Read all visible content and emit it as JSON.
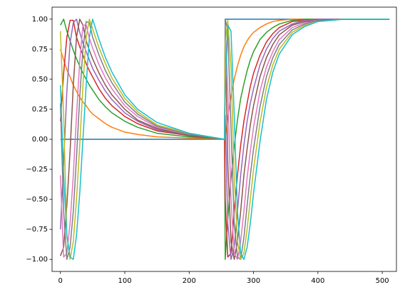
{
  "chart_data": {
    "type": "line",
    "x": [
      0,
      5,
      10,
      15,
      20,
      25,
      30,
      35,
      40,
      45,
      50,
      60,
      70,
      80,
      100,
      120,
      150,
      200,
      255,
      256,
      260,
      265,
      270,
      275,
      280,
      285,
      290,
      295,
      300,
      310,
      320,
      330,
      340,
      360,
      380,
      400,
      440,
      511
    ],
    "series": [
      {
        "color": "#1f77b4",
        "values": [
          0,
          0,
          0,
          0,
          0,
          0,
          0,
          0,
          0,
          0,
          0,
          0,
          0,
          0,
          0,
          0,
          0,
          0,
          0,
          1,
          1,
          1,
          1,
          1,
          1,
          1,
          1,
          1,
          1,
          1,
          1,
          1,
          1,
          1,
          1,
          1,
          1,
          1
        ]
      },
      {
        "color": "#ff7f0e",
        "values": [
          0.75,
          0.66,
          0.58,
          0.52,
          0.45,
          0.4,
          0.35,
          0.31,
          0.28,
          0.24,
          0.21,
          0.17,
          0.13,
          0.1,
          0.06,
          0.04,
          0.02,
          0.01,
          0,
          0,
          0.18,
          0.36,
          0.5,
          0.61,
          0.7,
          0.77,
          0.82,
          0.86,
          0.89,
          0.93,
          0.96,
          0.98,
          0.99,
          1,
          1,
          1,
          1,
          1
        ]
      },
      {
        "color": "#2ca02c",
        "values": [
          0.95,
          1,
          0.9,
          0.82,
          0.74,
          0.67,
          0.61,
          0.55,
          0.5,
          0.45,
          0.41,
          0.33,
          0.27,
          0.22,
          0.15,
          0.1,
          0.05,
          0.02,
          0,
          -1,
          -0.66,
          -0.33,
          -0.06,
          0.16,
          0.34,
          0.46,
          0.57,
          0.66,
          0.73,
          0.83,
          0.89,
          0.93,
          0.96,
          0.99,
          1,
          1,
          1,
          1
        ]
      },
      {
        "color": "#d62728",
        "values": [
          0.15,
          0.55,
          0.85,
          0.99,
          0.99,
          0.85,
          0.77,
          0.7,
          0.63,
          0.57,
          0.52,
          0.42,
          0.34,
          0.28,
          0.19,
          0.13,
          0.07,
          0.03,
          0,
          -0.5,
          -0.98,
          -0.95,
          -0.6,
          -0.3,
          -0.05,
          0.15,
          0.3,
          0.44,
          0.55,
          0.7,
          0.81,
          0.88,
          0.93,
          0.98,
          0.99,
          1,
          1,
          1
        ]
      },
      {
        "color": "#9467bd",
        "values": [
          -0.75,
          -0.2,
          0.4,
          0.8,
          0.97,
          1,
          0.89,
          0.8,
          0.73,
          0.66,
          0.59,
          0.49,
          0.4,
          0.33,
          0.22,
          0.15,
          0.08,
          0.03,
          0,
          0.2,
          -0.7,
          -1,
          -0.9,
          -0.6,
          -0.3,
          -0.05,
          0.15,
          0.3,
          0.42,
          0.62,
          0.75,
          0.84,
          0.9,
          0.96,
          0.99,
          1,
          1,
          1
        ]
      },
      {
        "color": "#8c564b",
        "values": [
          -0.97,
          -0.9,
          -0.55,
          -0.1,
          0.45,
          0.85,
          1,
          0.95,
          0.82,
          0.74,
          0.67,
          0.55,
          0.45,
          0.37,
          0.25,
          0.16,
          0.09,
          0.03,
          0,
          0.9,
          -0.2,
          -0.85,
          -1,
          -0.85,
          -0.6,
          -0.3,
          -0.08,
          0.12,
          0.28,
          0.52,
          0.68,
          0.79,
          0.87,
          0.95,
          0.98,
          0.99,
          1,
          1
        ]
      },
      {
        "color": "#e377c2",
        "values": [
          -0.3,
          -0.98,
          -0.95,
          -0.7,
          -0.3,
          0.2,
          0.65,
          0.95,
          0.95,
          0.84,
          0.76,
          0.62,
          0.51,
          0.42,
          0.28,
          0.19,
          0.1,
          0.04,
          0,
          0.95,
          0.4,
          -0.5,
          -0.95,
          -1,
          -0.85,
          -0.6,
          -0.32,
          -0.1,
          0.1,
          0.4,
          0.6,
          0.73,
          0.83,
          0.93,
          0.97,
          0.99,
          1,
          1
        ]
      },
      {
        "color": "#7f7f7f",
        "values": [
          0.3,
          -0.6,
          -1,
          -0.9,
          -0.6,
          -0.15,
          0.35,
          0.75,
          0.98,
          0.97,
          0.85,
          0.7,
          0.57,
          0.47,
          0.31,
          0.21,
          0.11,
          0.04,
          0,
          1,
          0.9,
          0.1,
          -0.7,
          -0.98,
          -1,
          -0.82,
          -0.55,
          -0.3,
          -0.08,
          0.27,
          0.52,
          0.68,
          0.79,
          0.91,
          0.96,
          0.99,
          1,
          1
        ]
      },
      {
        "color": "#bcbd22",
        "values": [
          0.9,
          0.2,
          -0.8,
          -1,
          -0.85,
          -0.5,
          -0.05,
          0.45,
          0.85,
          1,
          0.92,
          0.76,
          0.63,
          0.51,
          0.34,
          0.23,
          0.12,
          0.05,
          0,
          0.8,
          0.99,
          0.6,
          -0.3,
          -0.85,
          -1,
          -0.95,
          -0.75,
          -0.5,
          -0.25,
          0.14,
          0.43,
          0.62,
          0.75,
          0.89,
          0.95,
          0.98,
          1,
          1
        ]
      },
      {
        "color": "#17becf",
        "values": [
          0.45,
          -0.3,
          -0.8,
          -0.98,
          -1,
          -0.8,
          -0.45,
          0,
          0.45,
          0.85,
          1,
          0.83,
          0.68,
          0.56,
          0.37,
          0.25,
          0.14,
          0.05,
          0,
          0.4,
          0.95,
          0.9,
          0.2,
          -0.6,
          -0.95,
          -1,
          -0.9,
          -0.7,
          -0.45,
          -0.02,
          0.33,
          0.56,
          0.71,
          0.87,
          0.94,
          0.98,
          1,
          1
        ]
      }
    ],
    "xlim": [
      -13,
      522
    ],
    "ylim": [
      -1.1,
      1.1
    ],
    "xticks": [
      0,
      100,
      200,
      300,
      400,
      500
    ],
    "yticks": [
      {
        "value": -1,
        "label": "−1.00"
      },
      {
        "value": -0.75,
        "label": "−0.75"
      },
      {
        "value": -0.5,
        "label": "−0.50"
      },
      {
        "value": -0.25,
        "label": "−0.25"
      },
      {
        "value": 0,
        "label": "0.00"
      },
      {
        "value": 0.25,
        "label": "0.25"
      },
      {
        "value": 0.5,
        "label": "0.50"
      },
      {
        "value": 0.75,
        "label": "0.75"
      },
      {
        "value": 1,
        "label": "1.00"
      }
    ],
    "grid": false
  }
}
